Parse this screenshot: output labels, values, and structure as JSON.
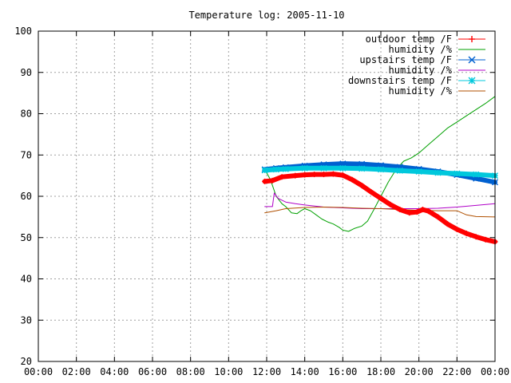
{
  "chart_data": {
    "type": "line",
    "title": "Temperature log: 2005-11-10",
    "xlabel": "",
    "ylabel": "",
    "grid": true,
    "legend_position": "top-right",
    "xlim": [
      0,
      24
    ],
    "ylim": [
      20,
      100
    ],
    "x_tick_values": [
      0,
      2,
      4,
      6,
      8,
      10,
      12,
      14,
      16,
      18,
      20,
      22,
      24
    ],
    "x_tick_labels": [
      "00:00",
      "02:00",
      "04:00",
      "06:00",
      "08:00",
      "10:00",
      "12:00",
      "14:00",
      "16:00",
      "18:00",
      "20:00",
      "22:00",
      "00:00"
    ],
    "y_tick_values": [
      20,
      30,
      40,
      50,
      60,
      70,
      80,
      90,
      100
    ],
    "y_tick_labels": [
      "20",
      "30",
      "40",
      "50",
      "60",
      "70",
      "80",
      "90",
      "100"
    ],
    "series": [
      {
        "name": "outdoor temp /F",
        "color": "#ff0000",
        "marker": "plus",
        "points": [
          [
            11.9,
            63.6
          ],
          [
            12.3,
            63.8
          ],
          [
            12.8,
            64.7
          ],
          [
            13.5,
            65.0
          ],
          [
            14.0,
            65.2
          ],
          [
            14.5,
            65.3
          ],
          [
            15.0,
            65.3
          ],
          [
            15.5,
            65.4
          ],
          [
            16.0,
            65.1
          ],
          [
            16.5,
            64.0
          ],
          [
            17.0,
            62.6
          ],
          [
            17.5,
            61.0
          ],
          [
            18.0,
            59.5
          ],
          [
            18.5,
            58.0
          ],
          [
            19.0,
            56.8
          ],
          [
            19.5,
            56.0
          ],
          [
            19.9,
            56.2
          ],
          [
            20.2,
            56.8
          ],
          [
            20.5,
            56.4
          ],
          [
            21.0,
            55.0
          ],
          [
            21.5,
            53.3
          ],
          [
            22.0,
            52.0
          ],
          [
            22.5,
            51.0
          ],
          [
            23.0,
            50.2
          ],
          [
            23.5,
            49.5
          ],
          [
            24.0,
            49.0
          ]
        ]
      },
      {
        "name": "humidity /%",
        "color": "#00a000",
        "marker": "",
        "points": [
          [
            11.9,
            66.5
          ],
          [
            12.2,
            64.0
          ],
          [
            12.5,
            60.0
          ],
          [
            12.8,
            58.2
          ],
          [
            13.0,
            57.5
          ],
          [
            13.3,
            56.0
          ],
          [
            13.6,
            55.8
          ],
          [
            13.8,
            56.5
          ],
          [
            14.0,
            57.0
          ],
          [
            14.3,
            56.5
          ],
          [
            14.6,
            55.5
          ],
          [
            14.9,
            54.5
          ],
          [
            15.2,
            53.8
          ],
          [
            15.5,
            53.3
          ],
          [
            15.8,
            52.5
          ],
          [
            16.0,
            51.8
          ],
          [
            16.3,
            51.5
          ],
          [
            16.6,
            52.2
          ],
          [
            17.0,
            52.8
          ],
          [
            17.3,
            54.0
          ],
          [
            17.6,
            56.5
          ],
          [
            18.0,
            60.0
          ],
          [
            18.4,
            63.5
          ],
          [
            18.8,
            66.5
          ],
          [
            19.2,
            68.5
          ],
          [
            19.6,
            69.3
          ],
          [
            20.0,
            70.5
          ],
          [
            20.5,
            72.5
          ],
          [
            21.0,
            74.5
          ],
          [
            21.5,
            76.5
          ],
          [
            22.0,
            78.0
          ],
          [
            22.5,
            79.5
          ],
          [
            23.0,
            81.0
          ],
          [
            23.5,
            82.5
          ],
          [
            24.0,
            84.2
          ]
        ]
      },
      {
        "name": "upstairs temp /F",
        "color": "#0060d0",
        "marker": "cross",
        "points": [
          [
            11.9,
            66.5
          ],
          [
            12.5,
            66.8
          ],
          [
            13.0,
            67.0
          ],
          [
            14.0,
            67.4
          ],
          [
            15.0,
            67.7
          ],
          [
            16.0,
            67.9
          ],
          [
            17.0,
            67.8
          ],
          [
            18.0,
            67.5
          ],
          [
            19.0,
            67.1
          ],
          [
            20.0,
            66.6
          ],
          [
            21.0,
            66.0
          ],
          [
            22.0,
            65.2
          ],
          [
            23.0,
            64.3
          ],
          [
            24.0,
            63.4
          ]
        ]
      },
      {
        "name": "humidity /%",
        "color": "#b000c8",
        "marker": "",
        "points": [
          [
            11.9,
            57.5
          ],
          [
            12.3,
            57.5
          ],
          [
            12.4,
            60.8
          ],
          [
            12.6,
            59.5
          ],
          [
            13.0,
            58.6
          ],
          [
            13.5,
            58.2
          ],
          [
            14.0,
            57.9
          ],
          [
            15.0,
            57.4
          ],
          [
            16.0,
            57.2
          ],
          [
            17.0,
            57.0
          ],
          [
            18.0,
            57.0
          ],
          [
            19.0,
            57.0
          ],
          [
            20.0,
            57.0
          ],
          [
            21.0,
            57.1
          ],
          [
            22.0,
            57.4
          ],
          [
            23.0,
            57.8
          ],
          [
            24.0,
            58.2
          ]
        ]
      },
      {
        "name": "downstairs temp /F",
        "color": "#00c8dc",
        "marker": "star",
        "points": [
          [
            11.9,
            66.3
          ],
          [
            12.5,
            66.5
          ],
          [
            13.0,
            66.6
          ],
          [
            14.0,
            66.8
          ],
          [
            15.0,
            66.8
          ],
          [
            16.0,
            66.8
          ],
          [
            17.0,
            66.7
          ],
          [
            18.0,
            66.5
          ],
          [
            19.0,
            66.2
          ],
          [
            20.0,
            66.0
          ],
          [
            21.0,
            65.7
          ],
          [
            22.0,
            65.5
          ],
          [
            23.0,
            65.3
          ],
          [
            24.0,
            65.0
          ]
        ]
      },
      {
        "name": "humidity /%",
        "color": "#b05000",
        "marker": "",
        "points": [
          [
            11.9,
            56.0
          ],
          [
            12.5,
            56.5
          ],
          [
            13.0,
            57.0
          ],
          [
            14.0,
            57.3
          ],
          [
            15.0,
            57.4
          ],
          [
            16.0,
            57.3
          ],
          [
            17.0,
            57.1
          ],
          [
            18.0,
            57.0
          ],
          [
            19.0,
            56.8
          ],
          [
            20.0,
            56.6
          ],
          [
            21.0,
            56.5
          ],
          [
            22.0,
            56.5
          ],
          [
            22.5,
            55.5
          ],
          [
            23.0,
            55.1
          ],
          [
            24.0,
            55.0
          ]
        ]
      }
    ]
  }
}
